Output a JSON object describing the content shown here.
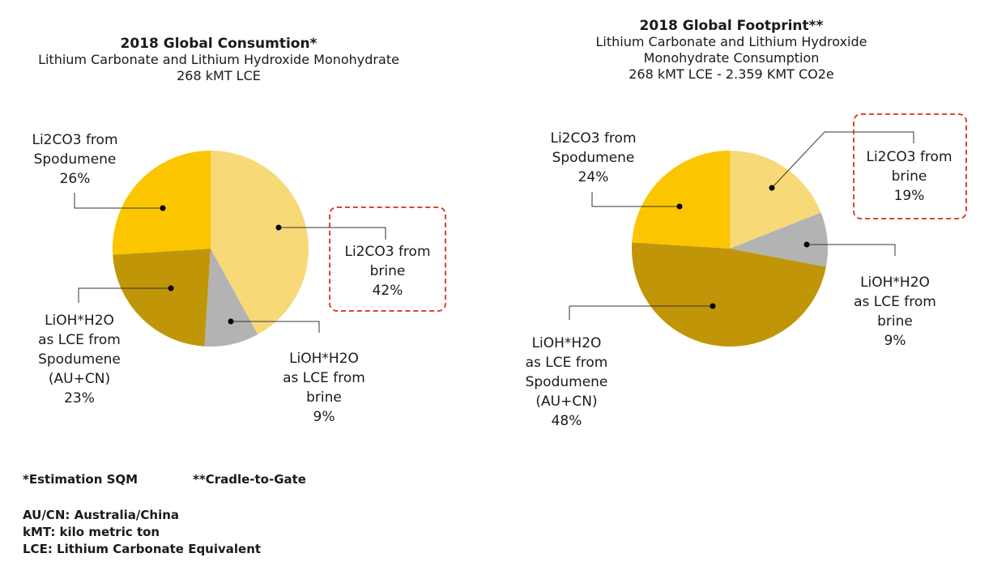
{
  "chart_data": [
    {
      "type": "pie",
      "title": "2018 Global Consumtion*",
      "subtitle": [
        "Lithium Carbonate and Lithium Hydroxide Monohydrate",
        "268 kMT LCE"
      ],
      "categories": [
        "Li2CO3 from brine",
        "LiOH*H2O as LCE from brine",
        "LiOH*H2O as LCE from Spodumene (AU+CN)",
        "Li2CO3 from Spodumene"
      ],
      "values": [
        42,
        9,
        23,
        26
      ],
      "colors": [
        "#f8d978",
        "#b3b3b3",
        "#c09608",
        "#fbc600"
      ],
      "labels": [
        {
          "lines": [
            "Li2CO3 from",
            "brine",
            "42%"
          ],
          "highlighted": true
        },
        {
          "lines": [
            "LiOH*H2O",
            "as LCE from brine",
            "9%"
          ]
        },
        {
          "lines": [
            "LiOH*H2O",
            "as LCE from",
            "Spodumene",
            "(AU+CN)",
            "23%"
          ]
        },
        {
          "lines": [
            "Li2CO3 from",
            "Spodumene",
            "26%"
          ]
        }
      ]
    },
    {
      "type": "pie",
      "title": "2018 Global Footprint**",
      "subtitle": [
        "Lithium Carbonate and Lithium Hydroxide",
        "Monohydrate Consumption",
        "268 kMT LCE - 2.359 KMT CO2e"
      ],
      "categories": [
        "Li2CO3 from brine",
        "LiOH*H2O as LCE from brine",
        "LiOH*H2O as LCE from Spodumene (AU+CN)",
        "Li2CO3 from Spodumene"
      ],
      "values": [
        19,
        9,
        48,
        24
      ],
      "colors": [
        "#f8d978",
        "#b3b3b3",
        "#c09608",
        "#fbc600"
      ],
      "labels": [
        {
          "lines": [
            "Li2CO3 from",
            "brine",
            "19%"
          ],
          "highlighted": true
        },
        {
          "lines": [
            "LiOH*H2O",
            "as LCE from brine",
            "9%"
          ]
        },
        {
          "lines": [
            "LiOH*H2O",
            "as LCE from",
            "Spodumene",
            "(AU+CN)",
            "48%"
          ]
        },
        {
          "lines": [
            "Li2CO3 from",
            "Spodumene",
            "24%"
          ]
        }
      ]
    }
  ],
  "footnotes": {
    "estimation": "*Estimation SQM",
    "cradle": "**Cradle-to-Gate",
    "abbrev": [
      "AU/CN: Australia/China",
      "kMT: kilo metric ton",
      "LCE: Lithium Carbonate Equivalent"
    ]
  },
  "highlight_color": "#e0452b"
}
